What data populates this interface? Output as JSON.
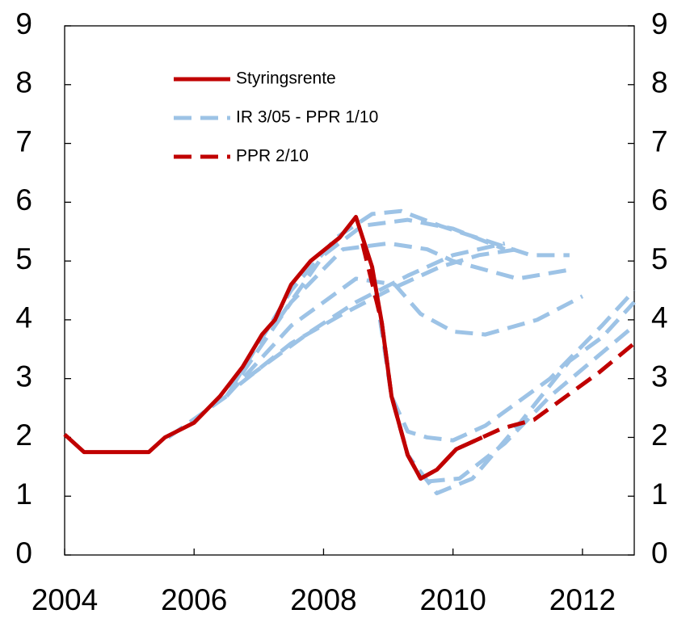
{
  "chart_data": {
    "type": "line",
    "xlim": [
      2004,
      2012.8
    ],
    "xticks": [
      2004,
      2006,
      2008,
      2010,
      2012
    ],
    "ylim": [
      0,
      9
    ],
    "yticks": [
      0,
      1,
      2,
      3,
      4,
      5,
      6,
      7,
      8,
      9
    ],
    "y2lim": [
      0,
      9
    ],
    "y2ticks": [
      0,
      1,
      2,
      3,
      4,
      5,
      6,
      7,
      8,
      9
    ],
    "series": [
      {
        "name": "Styringsrente",
        "color": "#c00000",
        "dashed": false,
        "x": [
          [
            2004,
            2004.3,
            2005.3,
            2005.55,
            2006,
            2006.4,
            2006.75,
            2007.05,
            2007.25,
            2007.5,
            2007.8,
            2008.25,
            2008.5,
            2008.75,
            2008.9,
            2009.05,
            2009.3,
            2009.5,
            2009.75,
            2010.05,
            2010.25,
            2010.45
          ]
        ],
        "values": [
          [
            2.05,
            1.75,
            1.75,
            2.0,
            2.25,
            2.7,
            3.2,
            3.75,
            4.0,
            4.6,
            5.0,
            5.4,
            5.75,
            4.9,
            3.95,
            2.7,
            1.7,
            1.3,
            1.45,
            1.8,
            1.9,
            2.0
          ]
        ]
      },
      {
        "name": "IR 3/05 - PPR 1/10",
        "color": "#9dc3e6",
        "dashed": true,
        "x": [
          [
            2005.6,
            2006.5,
            2007.5,
            2008.2,
            2008.75,
            2009.2,
            2009.8,
            2010.5,
            2011.2,
            2011.8
          ],
          [
            2006.5,
            2007.5,
            2008.3,
            2009,
            2009.6,
            2010,
            2011,
            2011.8
          ],
          [
            2007.3,
            2008,
            2008.6,
            2009.3,
            2010,
            2010.8
          ],
          [
            2006.5,
            2007.5,
            2008.5,
            2009.1,
            2009.5,
            2010,
            2010.5,
            2011.3,
            2012
          ],
          [
            2006.7,
            2007.5,
            2008.3,
            2009,
            2009.8,
            2010.4,
            2011
          ],
          [
            2006.8,
            2007.8,
            2008.5,
            2009.3,
            2010,
            2010.8
          ],
          [
            2008.75,
            2009.05,
            2009.3,
            2009.6,
            2010,
            2010.5,
            2011.5,
            2012.3,
            2012.8
          ],
          [
            2009.05,
            2009.3,
            2009.75,
            2010.3,
            2011,
            2011.8,
            2012.3,
            2012.8
          ],
          [
            2009.6,
            2010.1,
            2010.8,
            2011.5,
            2012.8
          ]
        ],
        "values": [
          [
            2.0,
            2.7,
            4.5,
            5.4,
            5.8,
            5.85,
            5.6,
            5.35,
            5.1,
            5.1
          ],
          [
            2.7,
            4.3,
            5.2,
            5.3,
            5.2,
            5.0,
            4.7,
            4.85
          ],
          [
            4.0,
            5.1,
            5.6,
            5.7,
            5.55,
            5.2
          ],
          [
            2.7,
            3.9,
            4.7,
            4.6,
            4.1,
            3.8,
            3.75,
            4.0,
            4.4
          ],
          [
            2.9,
            3.6,
            4.1,
            4.5,
            4.9,
            5.1,
            5.2
          ],
          [
            3.0,
            3.8,
            4.3,
            4.75,
            5.1,
            5.3
          ],
          [
            4.9,
            2.7,
            2.1,
            2.0,
            1.95,
            2.2,
            3.0,
            3.9,
            4.5
          ],
          [
            2.7,
            1.7,
            1.05,
            1.3,
            2.2,
            3.3,
            3.7,
            4.3
          ],
          [
            1.25,
            1.3,
            1.9,
            2.7,
            3.9
          ]
        ]
      },
      {
        "name": "PPR 2/10",
        "color": "#c00000",
        "dashed": true,
        "x": [
          [
            2008.6,
            2008.9,
            2009.05,
            2009.3,
            2009.5,
            2009.75,
            2010.05,
            2010.25,
            2010.45,
            2010.75,
            2011.25,
            2011.75,
            2012.25,
            2012.8
          ]
        ],
        "values": [
          [
            5.3,
            3.95,
            2.7,
            1.7,
            1.3,
            1.45,
            1.8,
            1.9,
            2.0,
            2.15,
            2.3,
            2.7,
            3.1,
            3.6
          ]
        ]
      }
    ]
  }
}
